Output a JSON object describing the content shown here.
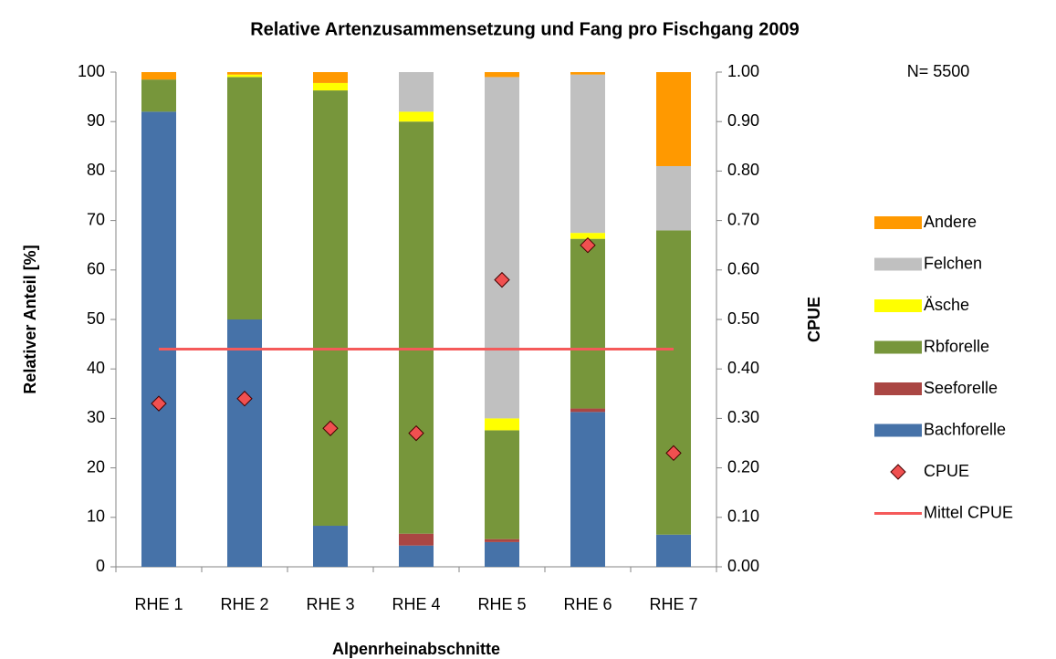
{
  "chart_data": {
    "type": "bar",
    "stacked": true,
    "title": "Relative Artenzusammensetzung und Fang pro Fischgang 2009",
    "annotation": "N= 5500",
    "x_label": "Alpenrheinabschnitte",
    "y_label": "Relativer Anteil [%]",
    "y2_label": "CPUE",
    "categories": [
      "RHE 1",
      "RHE 2",
      "RHE 3",
      "RHE 4",
      "RHE 5",
      "RHE 6",
      "RHE 7"
    ],
    "ylim": [
      0,
      100
    ],
    "yticks": [
      0,
      10,
      20,
      30,
      40,
      50,
      60,
      70,
      80,
      90,
      100
    ],
    "y2lim": [
      0,
      1
    ],
    "y2ticks": [
      {
        "value": 0,
        "label": "0.00"
      },
      {
        "value": 0.1,
        "label": "0.10"
      },
      {
        "value": 0.2,
        "label": "0.20"
      },
      {
        "value": 0.3,
        "label": "0.30"
      },
      {
        "value": 0.4,
        "label": "0.40"
      },
      {
        "value": 0.5,
        "label": "0.50"
      },
      {
        "value": 0.6,
        "label": "0.60"
      },
      {
        "value": 0.7,
        "label": "0.70"
      },
      {
        "value": 0.8,
        "label": "0.80"
      },
      {
        "value": 0.9,
        "label": "0.90"
      },
      {
        "value": 1,
        "label": "1.00"
      }
    ],
    "grid": false,
    "legend": "right",
    "series": [
      {
        "name": "Bachforelle",
        "color": "#4672a8",
        "values": [
          92,
          50,
          8.3,
          4.3,
          5,
          31.3,
          6.5
        ]
      },
      {
        "name": "Seeforelle",
        "color": "#aa4643",
        "values": [
          0,
          0,
          0,
          2.4,
          0.6,
          0.7,
          0
        ]
      },
      {
        "name": "Rbforelle",
        "color": "#77963b",
        "values": [
          6.5,
          49,
          88,
          83.3,
          22,
          34.3,
          61.5
        ]
      },
      {
        "name": "Äsche",
        "color": "#ffff00",
        "values": [
          0,
          0.5,
          1.5,
          2,
          2.4,
          1.2,
          0
        ]
      },
      {
        "name": "Felchen",
        "color": "#c0c0c0",
        "values": [
          0,
          0,
          0,
          8,
          69,
          32,
          13
        ]
      },
      {
        "name": "Andere",
        "color": "#ff9900",
        "values": [
          1.5,
          0.5,
          2.2,
          0,
          1,
          0.5,
          19
        ]
      },
      {
        "name": "CPUE",
        "type": "scatter",
        "axis": "y2",
        "color": "#f05050",
        "values": [
          0.33,
          0.34,
          0.28,
          0.27,
          0.58,
          0.65,
          0.23
        ]
      },
      {
        "name": "Mittel CPUE",
        "type": "line",
        "axis": "y2",
        "color": "#f55a5a",
        "values": [
          0.44,
          0.44,
          0.44,
          0.44,
          0.44,
          0.44,
          0.44
        ]
      }
    ]
  }
}
